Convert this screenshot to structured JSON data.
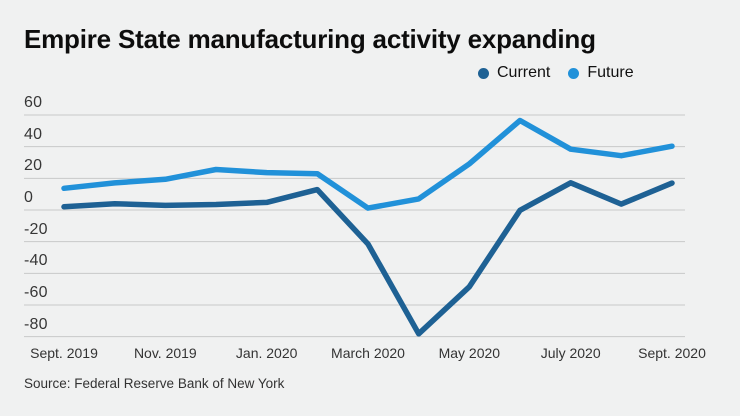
{
  "header": {
    "title": "Empire State manufacturing activity expanding"
  },
  "legend": {
    "items": [
      {
        "label": "Current",
        "color": "#1e6194"
      },
      {
        "label": "Future",
        "color": "#2191d9"
      }
    ]
  },
  "chart_data": {
    "type": "line",
    "title": "Empire State manufacturing activity expanding",
    "categories": [
      "Sept. 2019",
      "Oct. 2019",
      "Nov. 2019",
      "Dec. 2019",
      "Jan. 2020",
      "Feb. 2020",
      "March 2020",
      "April 2020",
      "May 2020",
      "June 2020",
      "July 2020",
      "Aug. 2020",
      "Sept. 2020"
    ],
    "series": [
      {
        "name": "Current",
        "color": "#1e6194",
        "values": [
          2.0,
          4.0,
          2.9,
          3.5,
          4.8,
          12.9,
          -21.5,
          -78.2,
          -48.5,
          -0.2,
          17.2,
          3.7,
          17.0
        ]
      },
      {
        "name": "Future",
        "color": "#2191d9",
        "values": [
          13.7,
          17.1,
          19.4,
          25.6,
          23.6,
          22.9,
          1.2,
          7.0,
          29.1,
          56.5,
          38.4,
          34.3,
          40.3
        ]
      }
    ],
    "ylim": [
      -80,
      60
    ],
    "yticks": [
      60,
      40,
      20,
      0,
      -20,
      -40,
      -60,
      -80
    ],
    "xtick_labels": [
      "Sept. 2019",
      "Nov. 2019",
      "Jan. 2020",
      "March 2020",
      "May 2020",
      "July 2020",
      "Sept. 2020"
    ],
    "grid": "horizontal",
    "legend_position": "top-right"
  },
  "footer": {
    "source": "Source: Federal Reserve Bank of New York"
  },
  "colors": {
    "background": "#f0f1f1",
    "gridline": "#c8c9c9",
    "axis_text": "#373737",
    "title_text": "#0d0d0d"
  }
}
